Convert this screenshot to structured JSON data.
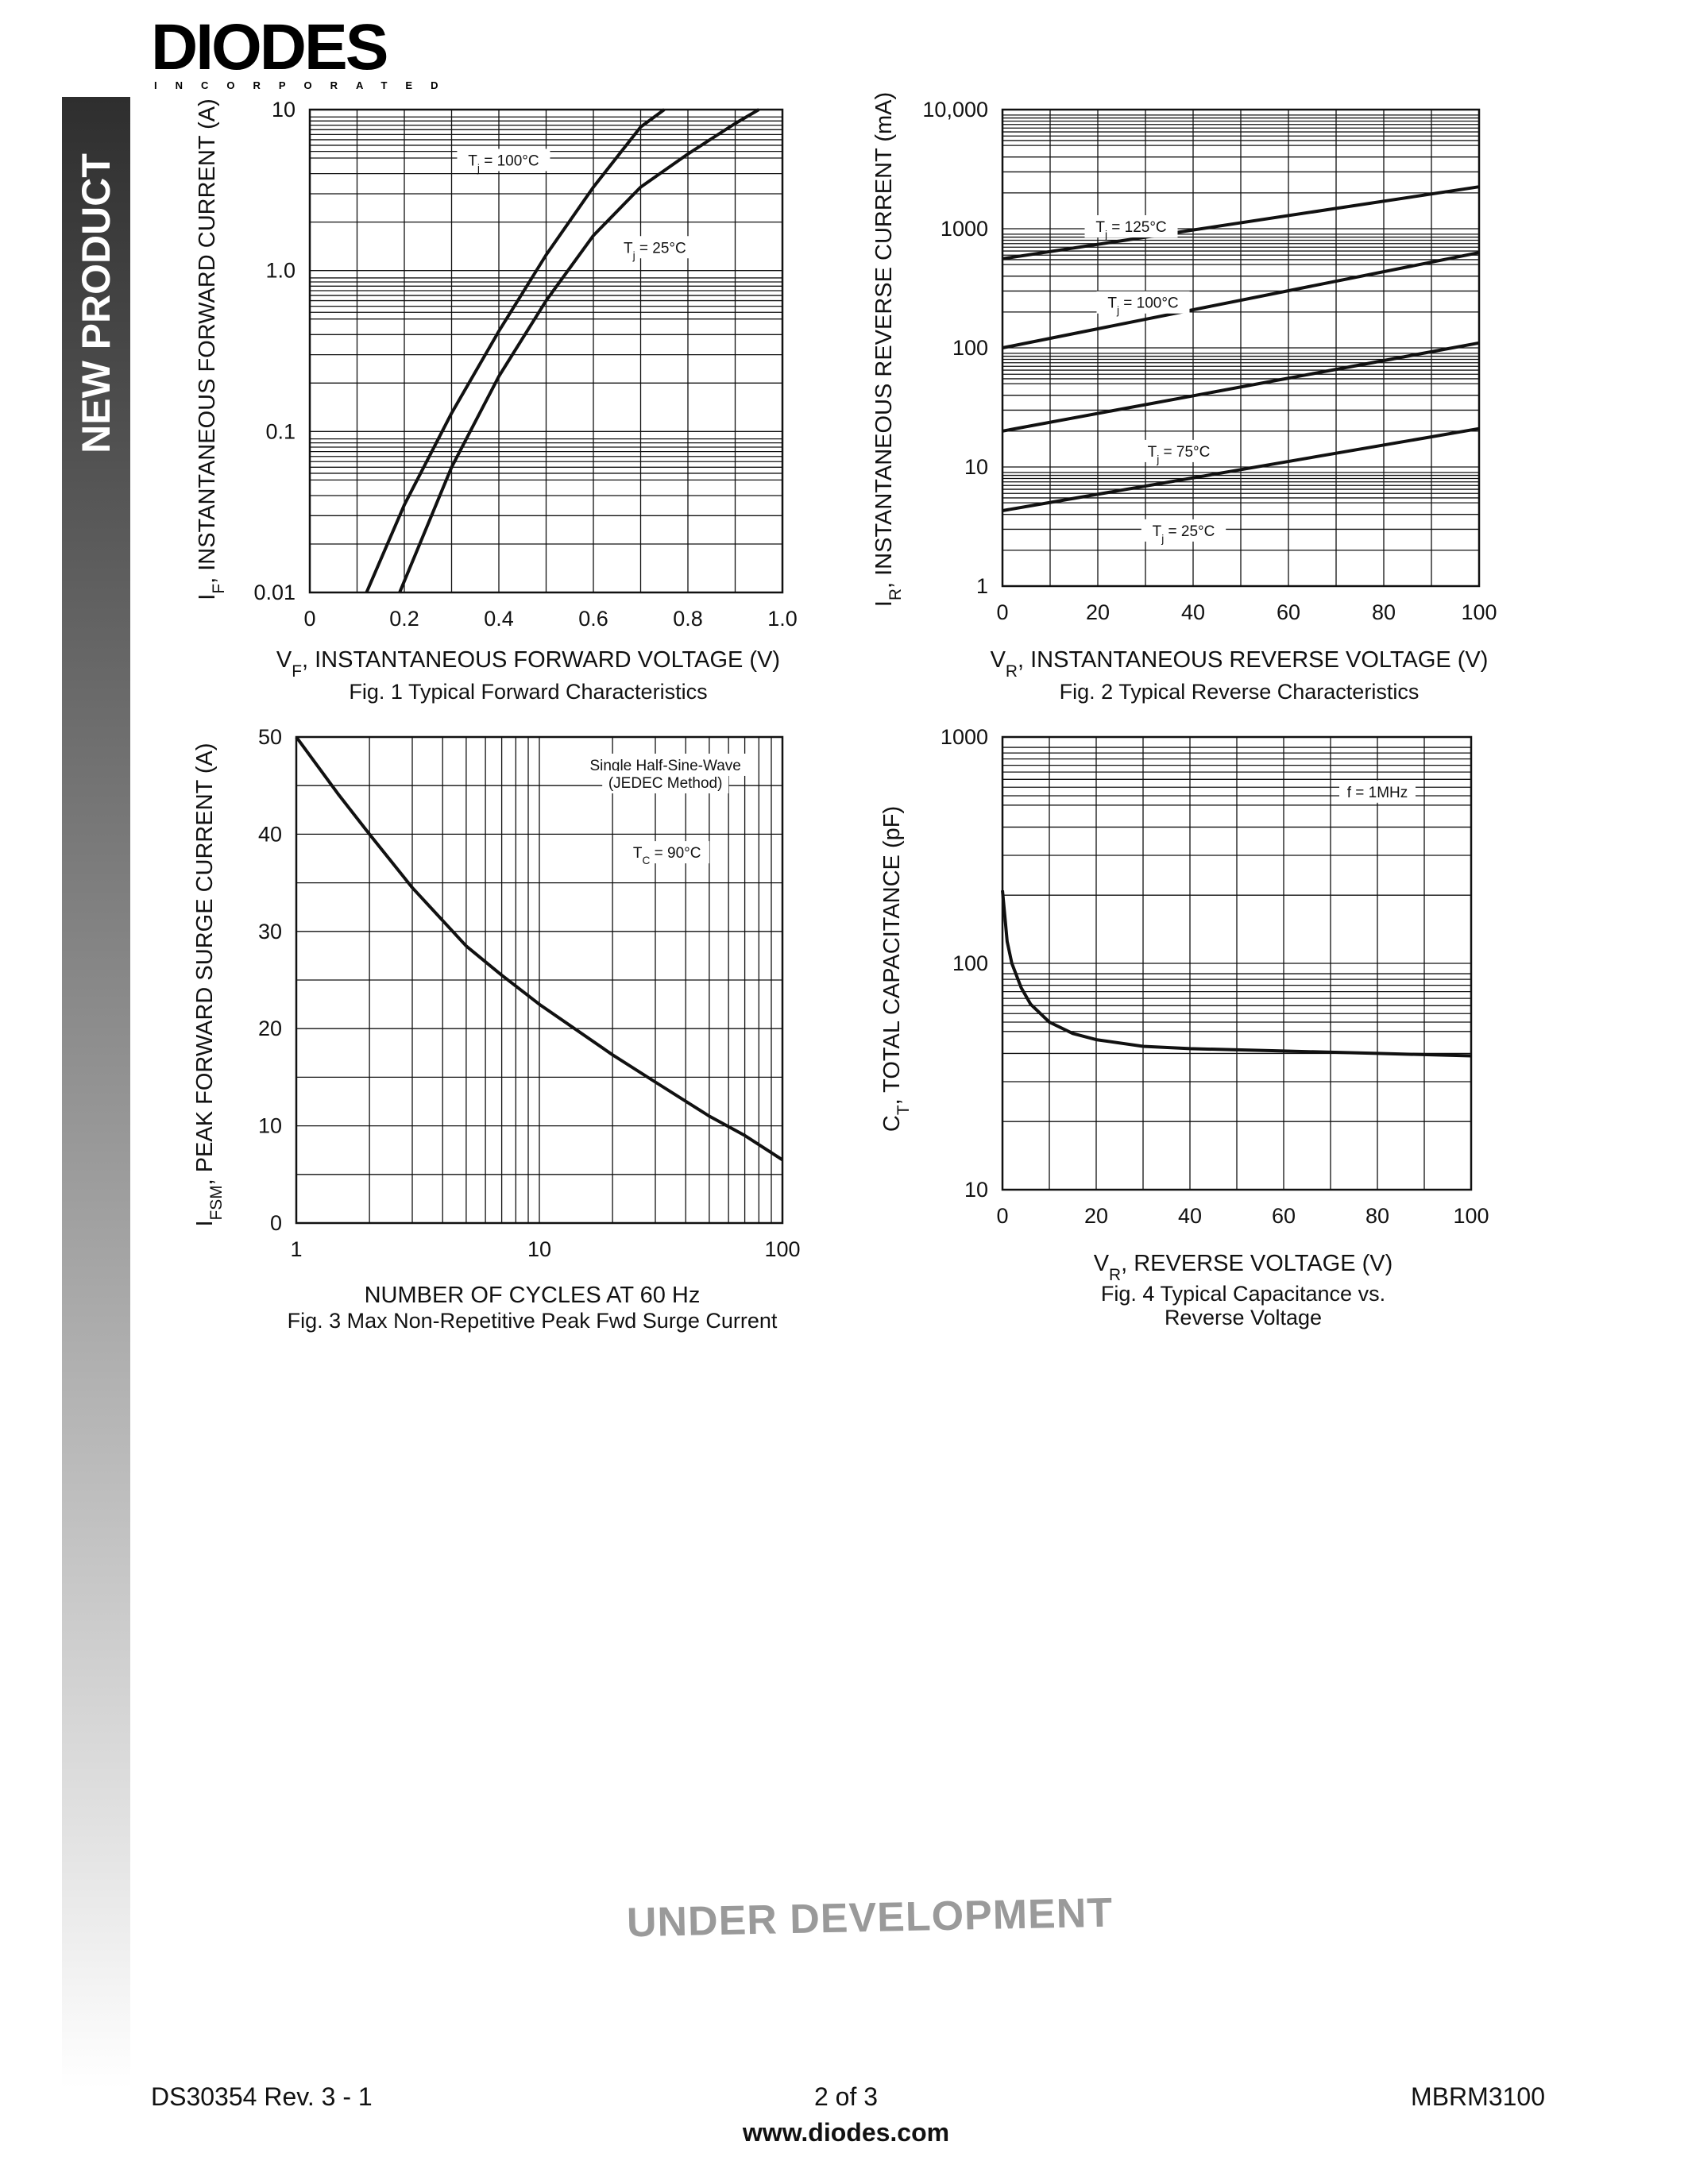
{
  "header": {
    "logo_text": "DIODES",
    "logo_subtext": "INCORPORATED"
  },
  "sidebar": {
    "label": "NEW PRODUCT"
  },
  "watermark": "UNDER DEVELOPMENT",
  "footer": {
    "doc_number": "DS30354 Rev. 3 - 1",
    "page": "2 of 3",
    "part_number": "MBRM3100",
    "url": "www.diodes.com"
  },
  "colors": {
    "ink": "#111111",
    "watermark": "#9a9a9a"
  },
  "chart_data": [
    {
      "id": "fig1",
      "type": "line",
      "caption": "Fig. 1  Typical Forward Characteristics",
      "xlabel": "V",
      "xlabel_sub": "F",
      "xlabel_rest": ", INSTANTANEOUS FORWARD VOLTAGE (V)",
      "ylabel": "I",
      "ylabel_sub": "F",
      "ylabel_rest": ", INSTANTANEOUS FORWARD CURRENT (A)",
      "xscale": "linear",
      "yscale": "log",
      "xlim": [
        0,
        1.0
      ],
      "ylim": [
        0.01,
        10
      ],
      "xticks": [
        0,
        0.2,
        0.4,
        0.6,
        0.8,
        1.0
      ],
      "xtick_labels": [
        "0",
        "0.2",
        "0.4",
        "0.6",
        "0.8",
        "1.0"
      ],
      "yticks": [
        0.01,
        0.1,
        1,
        10
      ],
      "ytick_labels": [
        "0.01",
        "0.1",
        "1.0",
        "10"
      ],
      "grid": true,
      "series": [
        {
          "name": "T",
          "name_sub": "j",
          "name_rest": " = 100°C",
          "x": [
            0.12,
            0.2,
            0.3,
            0.4,
            0.5,
            0.6,
            0.7,
            0.75
          ],
          "y": [
            0.01,
            0.035,
            0.13,
            0.42,
            1.25,
            3.3,
            7.8,
            10
          ]
        },
        {
          "name": "T",
          "name_sub": "j",
          "name_rest": " = 25°C",
          "x": [
            0.19,
            0.3,
            0.4,
            0.5,
            0.6,
            0.7,
            0.8,
            0.9,
            0.95
          ],
          "y": [
            0.01,
            0.06,
            0.22,
            0.65,
            1.65,
            3.3,
            5.3,
            8.2,
            10
          ]
        }
      ],
      "annotations": [
        {
          "text": "T",
          "sub": "j",
          "rest": " = 100°C",
          "x": 0.41,
          "y": 4.7
        },
        {
          "text": "T",
          "sub": "j",
          "rest": " = 25°C",
          "x": 0.73,
          "y": 1.35
        }
      ]
    },
    {
      "id": "fig2",
      "type": "line",
      "caption": "Fig. 2  Typical Reverse Characteristics",
      "xlabel": "V",
      "xlabel_sub": "R",
      "xlabel_rest": ", INSTANTANEOUS REVERSE VOLTAGE (V)",
      "ylabel": "I",
      "ylabel_sub": "R",
      "ylabel_rest": ", INSTANTANEOUS REVERSE CURRENT (mA)",
      "xscale": "linear",
      "yscale": "log",
      "xlim": [
        0,
        100
      ],
      "ylim": [
        1,
        10000
      ],
      "xticks": [
        0,
        20,
        40,
        60,
        80,
        100
      ],
      "xtick_labels": [
        "0",
        "20",
        "40",
        "60",
        "80",
        "100"
      ],
      "yticks": [
        1,
        10,
        100,
        1000,
        10000
      ],
      "ytick_labels": [
        "1",
        "10",
        "100",
        "1000",
        "10,000"
      ],
      "grid": true,
      "series": [
        {
          "name": "T",
          "name_sub": "j",
          "name_rest": " = 125°C",
          "x": [
            0,
            100
          ],
          "y": [
            560,
            2250
          ]
        },
        {
          "name": "T",
          "name_sub": "j",
          "name_rest": " = 100°C",
          "x": [
            0,
            100
          ],
          "y": [
            100,
            630
          ]
        },
        {
          "name": "T",
          "name_sub": "j",
          "name_rest": " = 75°C",
          "x": [
            0,
            100
          ],
          "y": [
            20,
            110
          ]
        },
        {
          "name": "T",
          "name_sub": "j",
          "name_rest": " = 25°C",
          "x": [
            0,
            100
          ],
          "y": [
            4.3,
            21
          ]
        }
      ],
      "annotations": [
        {
          "text": "T",
          "sub": "j",
          "rest": " = 125°C",
          "x": 27,
          "y": 1000
        },
        {
          "text": "T",
          "sub": "j",
          "rest": " = 100°C",
          "x": 29.5,
          "y": 230
        },
        {
          "text": "T",
          "sub": "j",
          "rest": " = 75°C",
          "x": 37,
          "y": 13
        },
        {
          "text": "T",
          "sub": "j",
          "rest": " = 25°C",
          "x": 38,
          "y": 2.8
        }
      ]
    },
    {
      "id": "fig3",
      "type": "line",
      "caption": "Fig. 3  Max Non-Repetitive Peak Fwd Surge Current",
      "xlabel": "NUMBER OF CYCLES AT 60 Hz",
      "xlabel_sub": "",
      "xlabel_rest": "",
      "ylabel": "I",
      "ylabel_sub": "FSM",
      "ylabel_rest": ", PEAK FORWARD SURGE CURRENT (A)",
      "xscale": "log",
      "yscale": "linear",
      "xlim": [
        1,
        100
      ],
      "ylim": [
        0,
        50
      ],
      "xticks": [
        1,
        10,
        100
      ],
      "xtick_labels": [
        "1",
        "10",
        "100"
      ],
      "yticks": [
        0,
        10,
        20,
        30,
        40,
        50
      ],
      "ytick_labels": [
        "0",
        "10",
        "20",
        "30",
        "40",
        "50"
      ],
      "grid": true,
      "series": [
        {
          "name": "",
          "x": [
            1,
            1.5,
            2,
            3,
            5,
            7,
            10,
            20,
            30,
            50,
            70,
            100
          ],
          "y": [
            50,
            44,
            40,
            34.5,
            28.5,
            25.5,
            22.5,
            17.3,
            14.5,
            11,
            9,
            6.5
          ]
        }
      ],
      "annotations": [
        {
          "text": "Single Half-Sine-Wave",
          "sub": "",
          "rest": "",
          "x": 33,
          "y": 46.9
        },
        {
          "text": "(JEDEC Method)",
          "sub": "",
          "rest": "",
          "x": 33,
          "y": 45.1
        },
        {
          "text": "T",
          "sub": "C",
          "rest": " = 90°C",
          "x": 33.5,
          "y": 37.9
        }
      ]
    },
    {
      "id": "fig4",
      "type": "line",
      "caption": "Fig. 4  Typical Capacitance vs.",
      "caption2": "Reverse Voltage",
      "xlabel": "V",
      "xlabel_sub": "R",
      "xlabel_rest": ", REVERSE VOLTAGE (V)",
      "ylabel": "C",
      "ylabel_sub": "T",
      "ylabel_rest": ", TOTAL CAPACITANCE (pF)",
      "xscale": "linear",
      "yscale": "log",
      "xlim": [
        0,
        100
      ],
      "ylim": [
        10,
        1000
      ],
      "xticks": [
        0,
        20,
        40,
        60,
        80,
        100
      ],
      "xtick_labels": [
        "0",
        "20",
        "40",
        "60",
        "80",
        "100"
      ],
      "yticks": [
        10,
        100,
        1000
      ],
      "ytick_labels": [
        "10",
        "100",
        "1000"
      ],
      "grid": true,
      "series": [
        {
          "name": "",
          "x": [
            0,
            1,
            2,
            4,
            6,
            10,
            15,
            20,
            30,
            40,
            60,
            80,
            100
          ],
          "y": [
            210,
            125,
            100,
            78,
            66,
            55,
            49,
            46,
            43,
            42,
            41,
            40,
            39
          ]
        }
      ],
      "annotations": [
        {
          "text": "f = 1MHz",
          "sub": "",
          "rest": "",
          "x": 80,
          "y": 560
        }
      ]
    }
  ]
}
